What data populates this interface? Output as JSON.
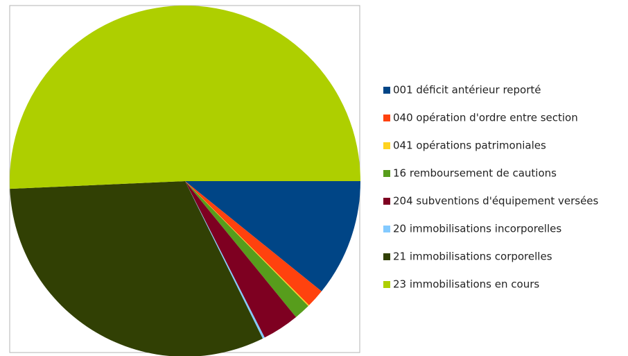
{
  "chart_data": {
    "type": "pie",
    "categories": [
      "001 déficit antérieur reporté",
      "040 opération d'ordre entre section",
      "041 opérations patrimoniales",
      "16 remboursement de cautions",
      "204 subventions d'équipement versées",
      "20 immobilisations incorporelles",
      "21 immobilisations corporelles",
      "23 immobilisations en cours"
    ],
    "values": [
      10.8,
      1.7,
      0.1,
      1.5,
      3.4,
      0.2,
      31.6,
      50.7
    ],
    "colors": [
      "#004586",
      "#ff420e",
      "#ffd320",
      "#579d1c",
      "#7e0021",
      "#83caff",
      "#314004",
      "#aecf00"
    ],
    "legend": "right"
  }
}
